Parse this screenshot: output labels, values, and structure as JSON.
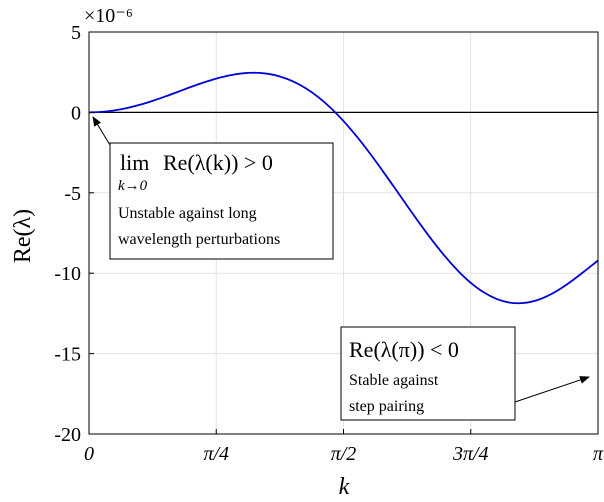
{
  "chart_data": {
    "type": "line",
    "ylabel": "Re(λ)",
    "xlabel": "k",
    "scale_note": "×10⁻⁶",
    "xlim": [
      0,
      3.14159
    ],
    "ylim": [
      -20,
      5
    ],
    "y_ticks": [
      5,
      0,
      -5,
      -10,
      -15,
      -20
    ],
    "y_tick_labels": [
      "5",
      "0",
      "-5",
      "-10",
      "-15",
      "-20"
    ],
    "x_ticks": [
      0,
      0.7854,
      1.5708,
      2.3562,
      3.14159
    ],
    "x_tick_labels": [
      "0",
      "π/4",
      "π/2",
      "3π/4",
      "π"
    ],
    "grid": true,
    "series": [
      {
        "color": "#0000d6",
        "x": [
          0,
          0.0785,
          0.1571,
          0.2356,
          0.3142,
          0.3927,
          0.4712,
          0.5498,
          0.6283,
          0.7069,
          0.7854,
          0.8639,
          0.9425,
          1.021,
          1.0996,
          1.1781,
          1.2566,
          1.3352,
          1.4137,
          1.4923,
          1.5708,
          1.6493,
          1.7279,
          1.8064,
          1.885,
          1.9635,
          2.042,
          2.1206,
          2.1991,
          2.2777,
          2.3562,
          2.4347,
          2.5133,
          2.5918,
          2.6704,
          2.7489,
          2.8274,
          2.906,
          2.9845,
          3.0631,
          3.1416
        ],
        "y": [
          0,
          0.031,
          0.123,
          0.273,
          0.474,
          0.717,
          0.992,
          1.284,
          1.578,
          1.857,
          2.103,
          2.298,
          2.424,
          2.465,
          2.407,
          2.235,
          1.942,
          1.518,
          0.962,
          0.275,
          -0.538,
          -1.459,
          -2.47,
          -3.55,
          -4.672,
          -5.806,
          -6.922,
          -7.989,
          -8.975,
          -9.852,
          -10.595,
          -11.18,
          -11.592,
          -11.821,
          -11.863,
          -11.726,
          -11.427,
          -10.988,
          -10.444,
          -9.835,
          -9.211
        ]
      }
    ],
    "annotations": [
      {
        "math_main": "lim",
        "math_sub": "k→0",
        "math_rest": "Re(λ(k)) > 0",
        "lines": [
          "Unstable against long",
          "wavelength perturbations"
        ]
      },
      {
        "math_rest": "Re(λ(π)) < 0",
        "lines": [
          "Stable against",
          "step pairing"
        ]
      }
    ]
  }
}
